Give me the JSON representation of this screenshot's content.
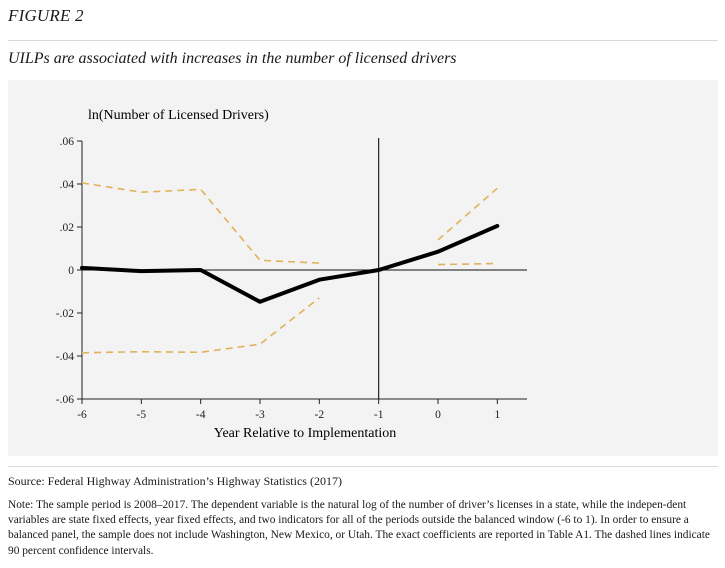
{
  "figure": {
    "label": "FIGURE 2",
    "title": "UILPs are associated with increases in the number of licensed drivers"
  },
  "chart_data": {
    "type": "line",
    "title": "",
    "ylabel": "ln(Number of Licensed Drivers)",
    "xlabel": "Year Relative to Implementation",
    "xlim": [
      -6,
      1.5
    ],
    "ylim": [
      -0.06,
      0.06
    ],
    "x_ticks": [
      -6,
      -5,
      -4,
      -3,
      -2,
      -1,
      0,
      1
    ],
    "x_tick_labels": [
      "-6",
      "-5",
      "-4",
      "-3",
      "-2",
      "-1",
      "0",
      "1"
    ],
    "y_ticks": [
      0.06,
      0.04,
      0.02,
      0,
      -0.02,
      -0.04,
      -0.06
    ],
    "y_tick_labels": [
      ".06",
      ".04",
      ".02",
      "0",
      "-.02",
      "-.04",
      "-.06"
    ],
    "reference_lines": {
      "x": -1,
      "y": 0
    },
    "grid": false,
    "series": [
      {
        "role": "estimate",
        "style": "solid",
        "color": "#000000",
        "segments": [
          {
            "x": [
              -6,
              -5,
              -4,
              -3,
              -2,
              -1,
              0,
              1
            ],
            "y": [
              0.001,
              -0.0005,
              0.0,
              -0.0148,
              -0.0045,
              0.0,
              0.0085,
              0.0205
            ]
          }
        ]
      },
      {
        "role": "upper-ci",
        "style": "dashed",
        "color": "#e0b25a",
        "segments": [
          {
            "x": [
              -6,
              -5,
              -4,
              -3,
              -2
            ],
            "y": [
              0.0405,
              0.0362,
              0.0375,
              0.0045,
              0.0032
            ]
          },
          {
            "x": [
              0,
              1
            ],
            "y": [
              0.014,
              0.038
            ]
          }
        ]
      },
      {
        "role": "lower-ci",
        "style": "dashed",
        "color": "#e0b25a",
        "segments": [
          {
            "x": [
              -6,
              -5,
              -4,
              -3,
              -2
            ],
            "y": [
              -0.0385,
              -0.038,
              -0.0383,
              -0.0345,
              -0.013
            ]
          },
          {
            "x": [
              0,
              1
            ],
            "y": [
              0.0025,
              0.003
            ]
          }
        ]
      }
    ]
  },
  "source": "Source: Federal Highway Administration’s Highway Statistics (2017)",
  "note": "Note: The sample period is 2008–2017. The dependent variable is the natural log of the number of driver’s licenses in a state, while the indepen-dent variables are state fixed effects, year fixed effects, and two indicators for all of the periods outside the balanced window (-6 to 1). In order to ensure a balanced panel, the sample does not include Washington, New Mexico, or Utah. The exact coefficients are reported in Table A1. The dashed lines indicate 90 percent confidence intervals."
}
